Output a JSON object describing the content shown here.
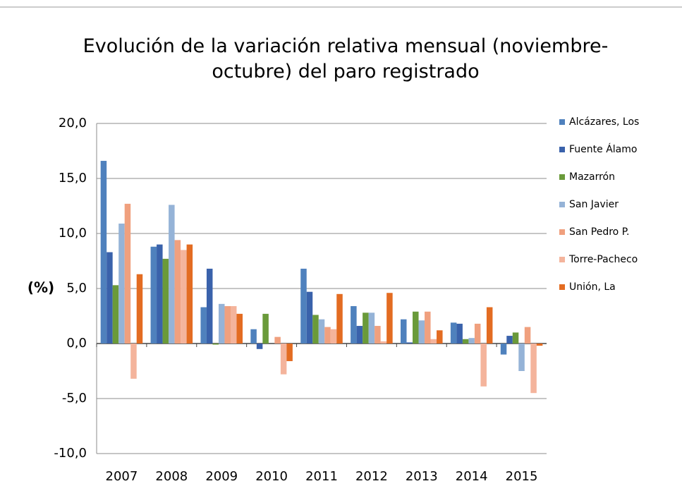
{
  "chart_data": {
    "type": "bar",
    "title": "Evolución de la variación relativa mensual (noviembre-octubre) del paro registrado",
    "y_label": "(%)",
    "categories": [
      "2007",
      "2008",
      "2009",
      "2010",
      "2011",
      "2012",
      "2013",
      "2014",
      "2015"
    ],
    "series": [
      {
        "name": "Alcázares, Los",
        "color": "#4f81bd",
        "values": [
          16.6,
          8.8,
          3.3,
          1.3,
          6.8,
          3.4,
          2.2,
          1.9,
          -1.0
        ]
      },
      {
        "name": "Fuente Álamo",
        "color": "#3a62ab",
        "values": [
          8.3,
          9.0,
          6.8,
          -0.5,
          4.7,
          1.6,
          0.1,
          1.8,
          0.7
        ]
      },
      {
        "name": "Mazarrón",
        "color": "#6a9a3a",
        "values": [
          5.3,
          7.7,
          -0.1,
          2.7,
          2.6,
          2.8,
          2.9,
          0.4,
          1.0
        ]
      },
      {
        "name": "San Javier",
        "color": "#95b3d7",
        "values": [
          10.9,
          12.6,
          3.6,
          0.0,
          2.2,
          2.8,
          2.1,
          0.5,
          -2.5
        ]
      },
      {
        "name": "San Pedro P.",
        "color": "#f0a07e",
        "values": [
          12.7,
          9.4,
          3.4,
          0.6,
          1.5,
          1.6,
          2.9,
          1.8,
          1.5
        ]
      },
      {
        "name": "Torre-Pacheco",
        "color": "#f4b49c",
        "values": [
          -3.2,
          8.5,
          3.4,
          -2.8,
          1.3,
          0.2,
          0.4,
          -3.9,
          -4.5
        ]
      },
      {
        "name": "Unión, La",
        "color": "#e36c22",
        "values": [
          6.3,
          9.0,
          2.7,
          -1.6,
          4.5,
          4.6,
          1.2,
          3.3,
          -0.2
        ]
      }
    ],
    "ylim": [
      -10,
      20
    ],
    "yticks": [
      {
        "value": -10,
        "label": "-10,0"
      },
      {
        "value": -5,
        "label": "-5,0"
      },
      {
        "value": 0,
        "label": "0,0"
      },
      {
        "value": 5,
        "label": "5,0"
      },
      {
        "value": 10,
        "label": "10,0"
      },
      {
        "value": 15,
        "label": "15,0"
      },
      {
        "value": 20,
        "label": "20,0"
      }
    ],
    "grid": true,
    "legend": "right"
  }
}
